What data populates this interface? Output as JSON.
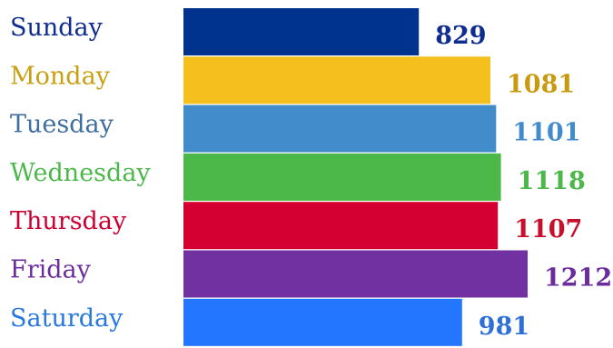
{
  "chart_data": {
    "type": "bar",
    "orientation": "horizontal",
    "title": "",
    "xlabel": "",
    "ylabel": "",
    "categories": [
      "Sunday",
      "Monday",
      "Tuesday",
      "Wednesday",
      "Thursday",
      "Friday",
      "Saturday"
    ],
    "values": [
      829,
      1081,
      1101,
      1118,
      1107,
      1212,
      981
    ],
    "value_labels": [
      "829",
      "1081",
      "1101",
      "1118",
      "1107",
      "1212",
      "981"
    ],
    "colors": [
      "#00338D",
      "#F5C01D",
      "#438CCB",
      "#4CB84A",
      "#D50032",
      "#7131A1",
      "#2376FF"
    ],
    "label_colors": [
      "#0F2C8F",
      "#C9A012",
      "#3E6F9E",
      "#4CB84A",
      "#CC0033",
      "#6C2C9E",
      "#2878E0"
    ],
    "value_label_colors": [
      "#0F2C8F",
      "#C89A10",
      "#438CCB",
      "#4CB84A",
      "#C8102E",
      "#6C2C9E",
      "#2F6FD8"
    ],
    "xlim": [
      0,
      1212
    ],
    "grid": false,
    "legend": "none"
  }
}
